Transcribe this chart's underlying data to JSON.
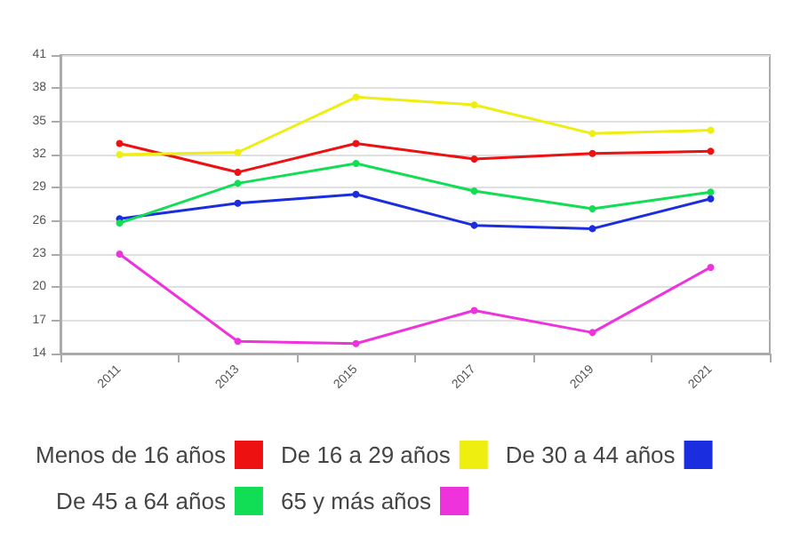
{
  "chart_data": {
    "type": "line",
    "categories": [
      "2011",
      "2013",
      "2015",
      "2017",
      "2019",
      "2021"
    ],
    "series": [
      {
        "name": "Menos de 16 años",
        "color": "#ee1111",
        "values": [
          33.0,
          30.4,
          33.0,
          31.6,
          32.1,
          32.3
        ]
      },
      {
        "name": "De 16 a 29 años",
        "color": "#eeee11",
        "values": [
          32.0,
          32.2,
          37.2,
          36.5,
          33.9,
          34.2
        ]
      },
      {
        "name": "De 30 a 44 años",
        "color": "#1a2ee0",
        "values": [
          26.2,
          27.6,
          28.4,
          25.6,
          25.3,
          28.0
        ]
      },
      {
        "name": "De 45 a 64 años",
        "color": "#11dd55",
        "values": [
          25.8,
          29.4,
          31.2,
          28.7,
          27.1,
          28.6
        ]
      },
      {
        "name": "65 y más años",
        "color": "#ee33dd",
        "values": [
          23.0,
          15.1,
          14.9,
          17.9,
          15.9,
          21.8
        ]
      }
    ],
    "ylim": [
      14,
      41
    ],
    "yticks": [
      14,
      17,
      20,
      23,
      26,
      29,
      32,
      35,
      38,
      41
    ],
    "grid": "y",
    "legend": "bottom",
    "marker": "circle",
    "line_style": "solid"
  }
}
